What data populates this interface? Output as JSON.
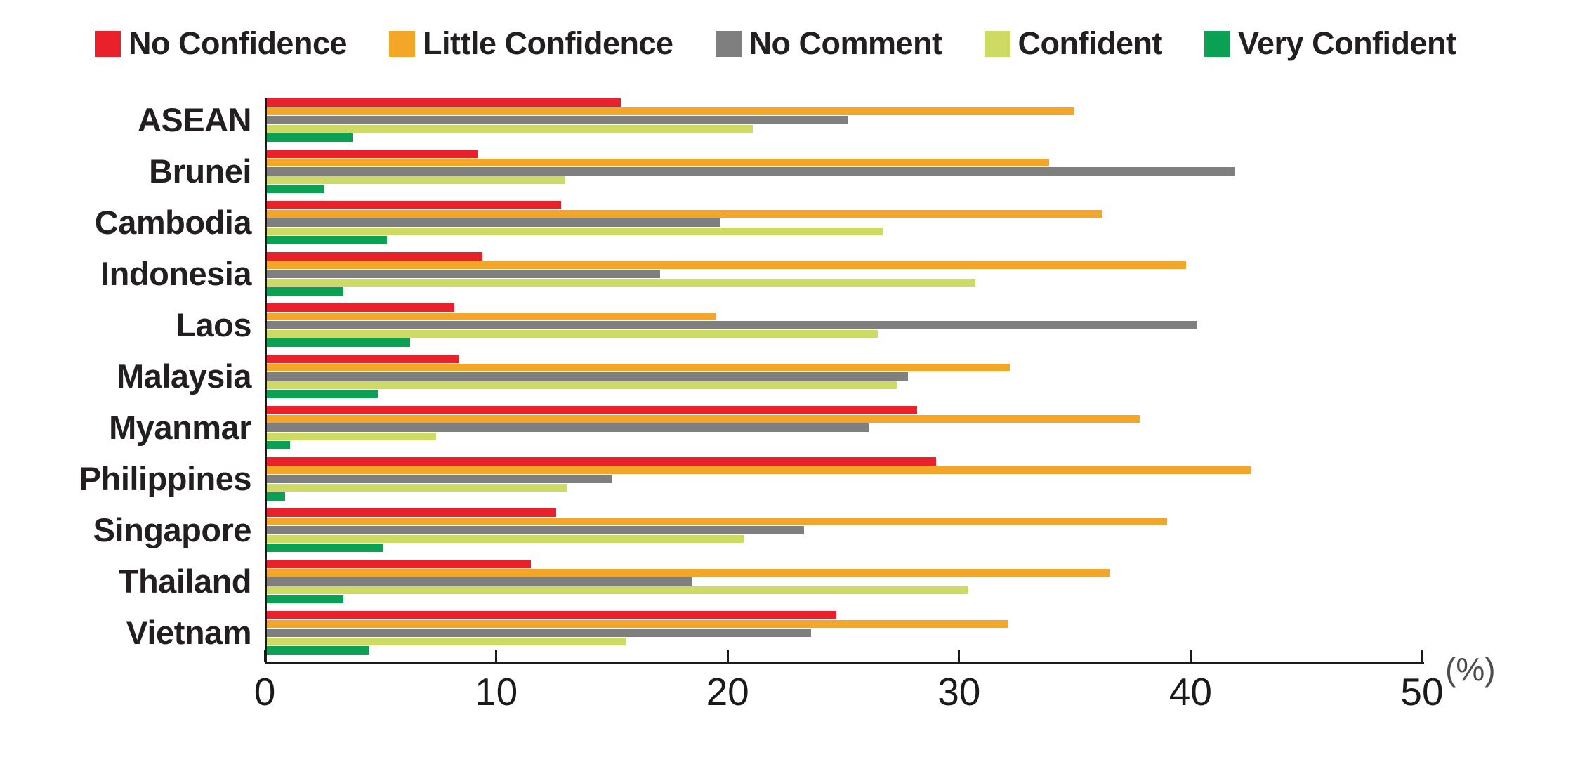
{
  "legend": {
    "items": [
      {
        "label": "No Confidence",
        "color": "#e8212b"
      },
      {
        "label": "Little Confidence",
        "color": "#f4a629"
      },
      {
        "label": "No Comment",
        "color": "#7f7f7f"
      },
      {
        "label": "Confident",
        "color": "#cdda64"
      },
      {
        "label": "Very Confident",
        "color": "#0ba155"
      }
    ]
  },
  "chart_data": {
    "type": "bar",
    "orientation": "horizontal",
    "title": "",
    "unit_label": "(%)",
    "xlim": [
      0,
      50
    ],
    "x_ticks": [
      0,
      10,
      20,
      30,
      40,
      50
    ],
    "grid": false,
    "legend_position": "top",
    "categories": [
      "ASEAN",
      "Brunei",
      "Cambodia",
      "Indonesia",
      "Laos",
      "Malaysia",
      "Myanmar",
      "Philippines",
      "Singapore",
      "Thailand",
      "Vietnam"
    ],
    "series": [
      {
        "name": "No Confidence",
        "color": "#e8212b",
        "values": [
          15.3,
          9.1,
          12.7,
          9.3,
          8.1,
          8.3,
          28.1,
          28.9,
          12.5,
          11.4,
          24.6
        ]
      },
      {
        "name": "Little Confidence",
        "color": "#f4a629",
        "values": [
          34.9,
          33.8,
          36.1,
          39.7,
          19.4,
          32.1,
          37.7,
          42.5,
          38.9,
          36.4,
          32.0
        ]
      },
      {
        "name": "No Comment",
        "color": "#7f7f7f",
        "values": [
          25.1,
          41.8,
          19.6,
          17.0,
          40.2,
          27.7,
          26.0,
          14.9,
          23.2,
          18.4,
          23.5
        ]
      },
      {
        "name": "Confident",
        "color": "#cdda64",
        "values": [
          21.0,
          12.9,
          26.6,
          30.6,
          26.4,
          27.2,
          7.3,
          13.0,
          20.6,
          30.3,
          15.5
        ]
      },
      {
        "name": "Very Confident",
        "color": "#0ba155",
        "values": [
          3.7,
          2.5,
          5.2,
          3.3,
          6.2,
          4.8,
          1.0,
          0.8,
          5.0,
          3.3,
          4.4
        ]
      }
    ]
  }
}
